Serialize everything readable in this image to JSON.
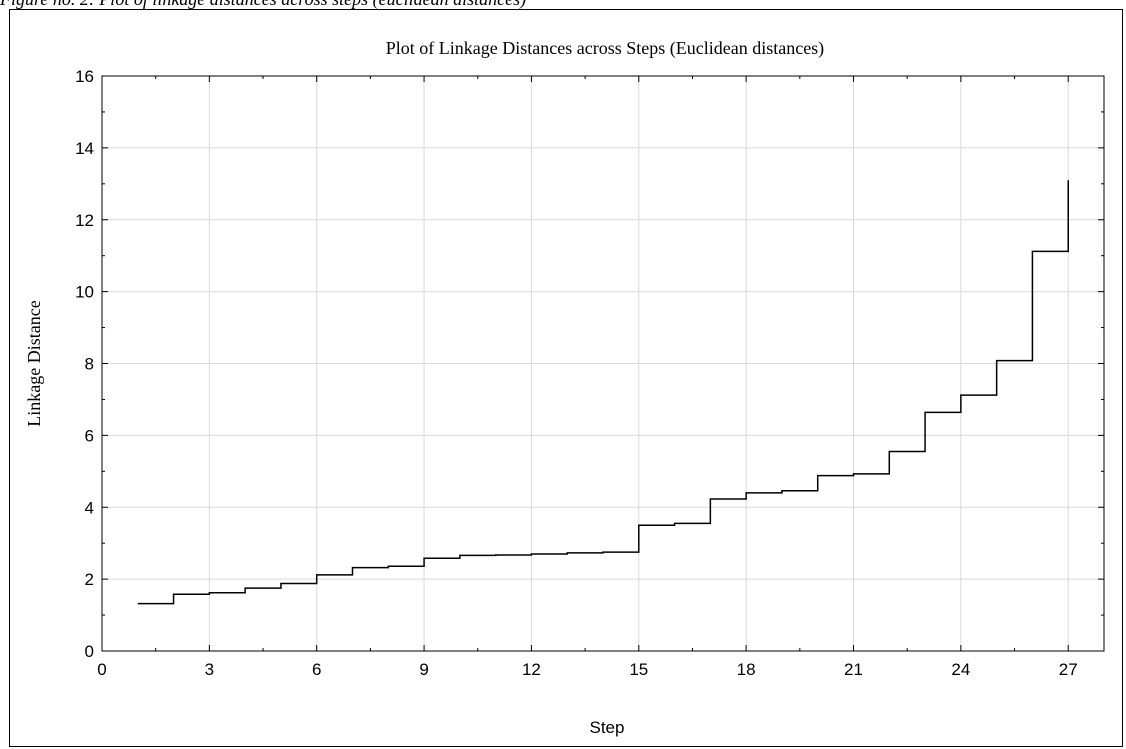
{
  "caption": "Figure no. 2: Plot of linkage distances across steps (euclidean distances)",
  "chart_data": {
    "type": "line",
    "step_style": "post",
    "title": "Plot of Linkage Distances across Steps (Euclidean distances)",
    "xlabel": "Step",
    "ylabel": "Linkage Distance",
    "xlim": [
      0,
      28
    ],
    "ylim": [
      0,
      16
    ],
    "xticks": [
      0,
      3,
      6,
      9,
      12,
      15,
      18,
      21,
      24,
      27
    ],
    "yticks": [
      0,
      2,
      4,
      6,
      8,
      10,
      12,
      14,
      16
    ],
    "grid": true,
    "line_color": "#000000",
    "grid_color": "#d9d9d9",
    "series": [
      {
        "x": [
          1,
          2,
          3,
          4,
          5,
          6,
          7,
          8,
          9,
          10,
          11,
          12,
          13,
          14,
          15,
          16,
          17,
          18,
          19,
          20,
          21,
          22,
          23,
          24,
          25,
          26,
          27
        ],
        "values": [
          1.32,
          1.58,
          1.62,
          1.75,
          1.88,
          2.12,
          2.32,
          2.36,
          2.58,
          2.66,
          2.67,
          2.7,
          2.73,
          2.75,
          3.5,
          3.55,
          4.23,
          4.4,
          4.46,
          4.88,
          4.93,
          5.55,
          6.64,
          7.12,
          8.08,
          11.12,
          13.1
        ]
      }
    ]
  }
}
